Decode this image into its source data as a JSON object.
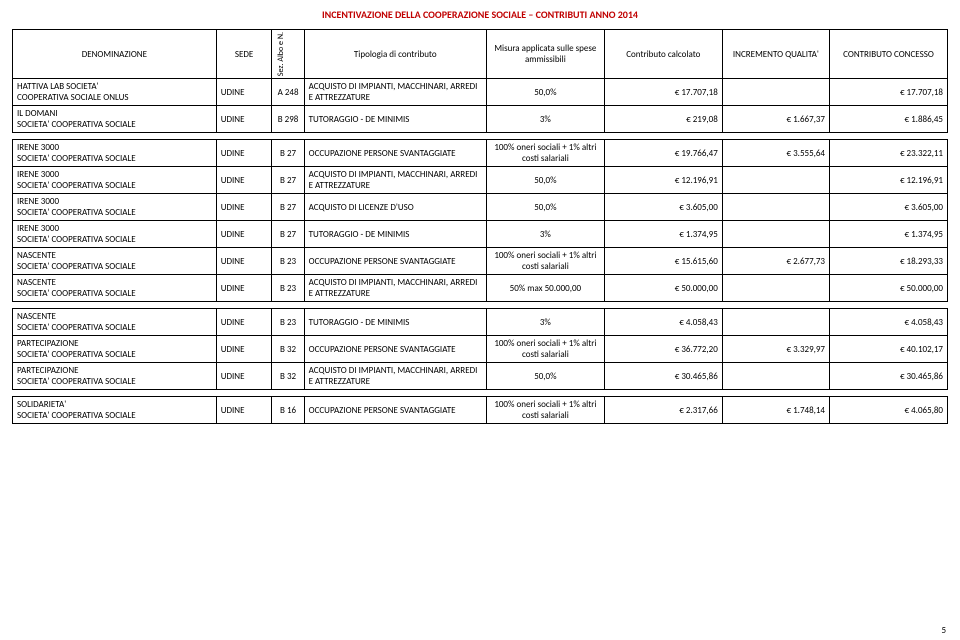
{
  "title": "INCENTIVAZIONE DELLA COOPERAZIONE SOCIALE – CONTRIBUTI ANNO 2014",
  "headers": {
    "denom": "DENOMINAZIONE",
    "sede": "SEDE",
    "sez": "Sez. Albo e N.",
    "tipo": "Tipologia di contributo",
    "misura": "Misura applicata sulle spese ammissibili",
    "calc": "Contributo calcolato",
    "incr": "INCREMENTO QUALITA'",
    "conc": "CONTRIBUTO CONCESSO"
  },
  "group1": [
    {
      "denom1": "HATTIVA LAB SOCIETA'",
      "denom2": "COOPERATIVA SOCIALE ONLUS",
      "sede": "UDINE",
      "sez": "A 248",
      "tipo": "ACQUISTO DI IMPIANTI, MACCHINARI, ARREDI E ATTREZZATURE",
      "mis": "50,0%",
      "calc": "€ 17.707,18",
      "inc": "",
      "conc": "€ 17.707,18"
    },
    {
      "denom1": "IL DOMANI",
      "denom2": "SOCIETA' COOPERATIVA SOCIALE",
      "sede": "UDINE",
      "sez": "B 298",
      "tipo": "TUTORAGGIO - DE MINIMIS",
      "mis": "3%",
      "calc": "€ 219,08",
      "inc": "€ 1.667,37",
      "conc": "€ 1.886,45"
    }
  ],
  "group2": [
    {
      "denom1": "IRENE 3000",
      "denom2": "SOCIETA' COOPERATIVA SOCIALE",
      "sede": "UDINE",
      "sez": "B 27",
      "tipo": "OCCUPAZIONE PERSONE SVANTAGGIATE",
      "mis": "100% oneri sociali + 1% altri costi salariali",
      "calc": "€ 19.766,47",
      "inc": "€ 3.555,64",
      "conc": "€ 23.322,11"
    },
    {
      "denom1": "IRENE 3000",
      "denom2": "SOCIETA' COOPERATIVA SOCIALE",
      "sede": "UDINE",
      "sez": "B 27",
      "tipo": "ACQUISTO DI IMPIANTI, MACCHINARI, ARREDI E ATTREZZATURE",
      "mis": "50,0%",
      "calc": "€ 12.196,91",
      "inc": "",
      "conc": "€ 12.196,91"
    },
    {
      "denom1": "IRENE 3000",
      "denom2": "SOCIETA' COOPERATIVA SOCIALE",
      "sede": "UDINE",
      "sez": "B 27",
      "tipo": "ACQUISTO DI LICENZE D'USO",
      "mis": "50,0%",
      "calc": "€ 3.605,00",
      "inc": "",
      "conc": "€ 3.605,00"
    },
    {
      "denom1": "IRENE 3000",
      "denom2": "SOCIETA' COOPERATIVA SOCIALE",
      "sede": "UDINE",
      "sez": "B 27",
      "tipo": "TUTORAGGIO - DE MINIMIS",
      "mis": "3%",
      "calc": "€ 1.374,95",
      "inc": "",
      "conc": "€ 1.374,95"
    },
    {
      "denom1": "NASCENTE",
      "denom2": "SOCIETA' COOPERATIVA SOCIALE",
      "sede": "UDINE",
      "sez": "B 23",
      "tipo": "OCCUPAZIONE PERSONE SVANTAGGIATE",
      "mis": "100% oneri sociali + 1% altri costi salariali",
      "calc": "€ 15.615,60",
      "inc": "€ 2.677,73",
      "conc": "€ 18.293,33"
    },
    {
      "denom1": "NASCENTE",
      "denom2": "SOCIETA' COOPERATIVA SOCIALE",
      "sede": "UDINE",
      "sez": "B 23",
      "tipo": "ACQUISTO DI IMPIANTI, MACCHINARI, ARREDI E ATTREZZATURE",
      "mis": "50% max 50.000,00",
      "calc": "€ 50.000,00",
      "inc": "",
      "conc": "€ 50.000,00"
    }
  ],
  "group3": [
    {
      "denom1": "NASCENTE",
      "denom2": "SOCIETA' COOPERATIVA SOCIALE",
      "sede": "UDINE",
      "sez": "B 23",
      "tipo": "TUTORAGGIO - DE MINIMIS",
      "mis": "3%",
      "calc": "€ 4.058,43",
      "inc": "",
      "conc": "€ 4.058,43"
    },
    {
      "denom1": "PARTECIPAZIONE",
      "denom2": "SOCIETA' COOPERATIVA SOCIALE",
      "sede": "UDINE",
      "sez": "B 32",
      "tipo": "OCCUPAZIONE PERSONE SVANTAGGIATE",
      "mis": "100% oneri sociali + 1% altri costi salariali",
      "calc": "€ 36.772,20",
      "inc": "€ 3.329,97",
      "conc": "€ 40.102,17"
    },
    {
      "denom1": "PARTECIPAZIONE",
      "denom2": "SOCIETA' COOPERATIVA SOCIALE",
      "sede": "UDINE",
      "sez": "B 32",
      "tipo": "ACQUISTO DI IMPIANTI, MACCHINARI, ARREDI E ATTREZZATURE",
      "mis": "50,0%",
      "calc": "€ 30.465,86",
      "inc": "",
      "conc": "€ 30.465,86"
    }
  ],
  "group4": [
    {
      "denom1": "SOLIDARIETA'",
      "denom2": "SOCIETA' COOPERATIVA SOCIALE",
      "sede": "UDINE",
      "sez": "B 16",
      "tipo": "OCCUPAZIONE PERSONE SVANTAGGIATE",
      "mis": "100% oneri sociali + 1% altri costi salariali",
      "calc": "€ 2.317,66",
      "inc": "€ 1.748,14",
      "conc": "€ 4.065,80"
    }
  ],
  "pagenum": "5"
}
